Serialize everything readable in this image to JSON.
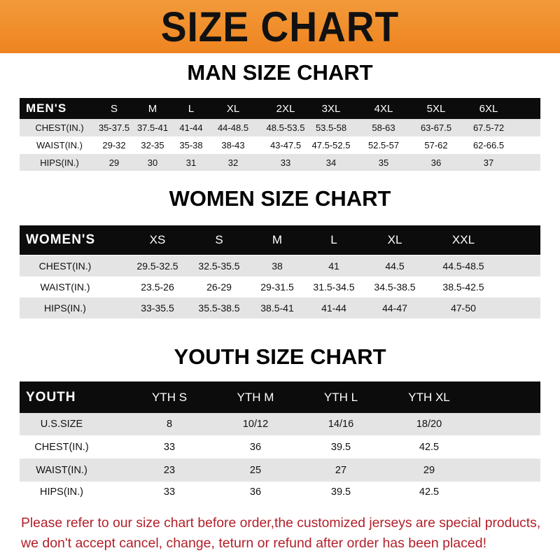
{
  "title": "SIZE CHART",
  "men": {
    "title": "MAN SIZE CHART",
    "header": [
      "MEN'S",
      "S",
      "M",
      "L",
      "XL",
      "2XL",
      "3XL",
      "4XL",
      "5XL",
      "6XL"
    ],
    "rows": [
      [
        "CHEST(IN.)",
        "35-37.5",
        "37.5-41",
        "41-44",
        "44-48.5",
        "48.5-53.5",
        "53.5-58",
        "58-63",
        "63-67.5",
        "67.5-72"
      ],
      [
        "WAIST(IN.)",
        "29-32",
        "32-35",
        "35-38",
        "38-43",
        "43-47.5",
        "47.5-52.5",
        "52.5-57",
        "57-62",
        "62-66.5"
      ],
      [
        "HIPS(IN.)",
        "29",
        "30",
        "31",
        "32",
        "33",
        "34",
        "35",
        "36",
        "37"
      ]
    ]
  },
  "women": {
    "title": "WOMEN SIZE CHART",
    "header": [
      "WOMEN'S",
      "XS",
      "S",
      "M",
      "L",
      "XL",
      "XXL"
    ],
    "rows": [
      [
        "CHEST(IN.)",
        "29.5-32.5",
        "32.5-35.5",
        "38",
        "41",
        "44.5",
        "44.5-48.5"
      ],
      [
        "WAIST(IN.)",
        "23.5-26",
        "26-29",
        "29-31.5",
        "31.5-34.5",
        "34.5-38.5",
        "38.5-42.5"
      ],
      [
        "HIPS(IN.)",
        "33-35.5",
        "35.5-38.5",
        "38.5-41",
        "41-44",
        "44-47",
        "47-50"
      ]
    ]
  },
  "youth": {
    "title": "YOUTH SIZE CHART",
    "header": [
      "YOUTH",
      "YTH S",
      "YTH M",
      "YTH L",
      "YTH XL"
    ],
    "rows": [
      [
        "U.S.SIZE",
        "8",
        "10/12",
        "14/16",
        "18/20"
      ],
      [
        "CHEST(IN.)",
        "33",
        "36",
        "39.5",
        "42.5"
      ],
      [
        "WAIST(IN.)",
        "23",
        "25",
        "27",
        "29"
      ],
      [
        "HIPS(IN.)",
        "33",
        "36",
        "39.5",
        "42.5"
      ]
    ]
  },
  "notice": [
    "Please refer to our size chart before order,the customized jerseys are special products,",
    "we don't accept cancel, change, teturn or refund after order has been placed!"
  ]
}
